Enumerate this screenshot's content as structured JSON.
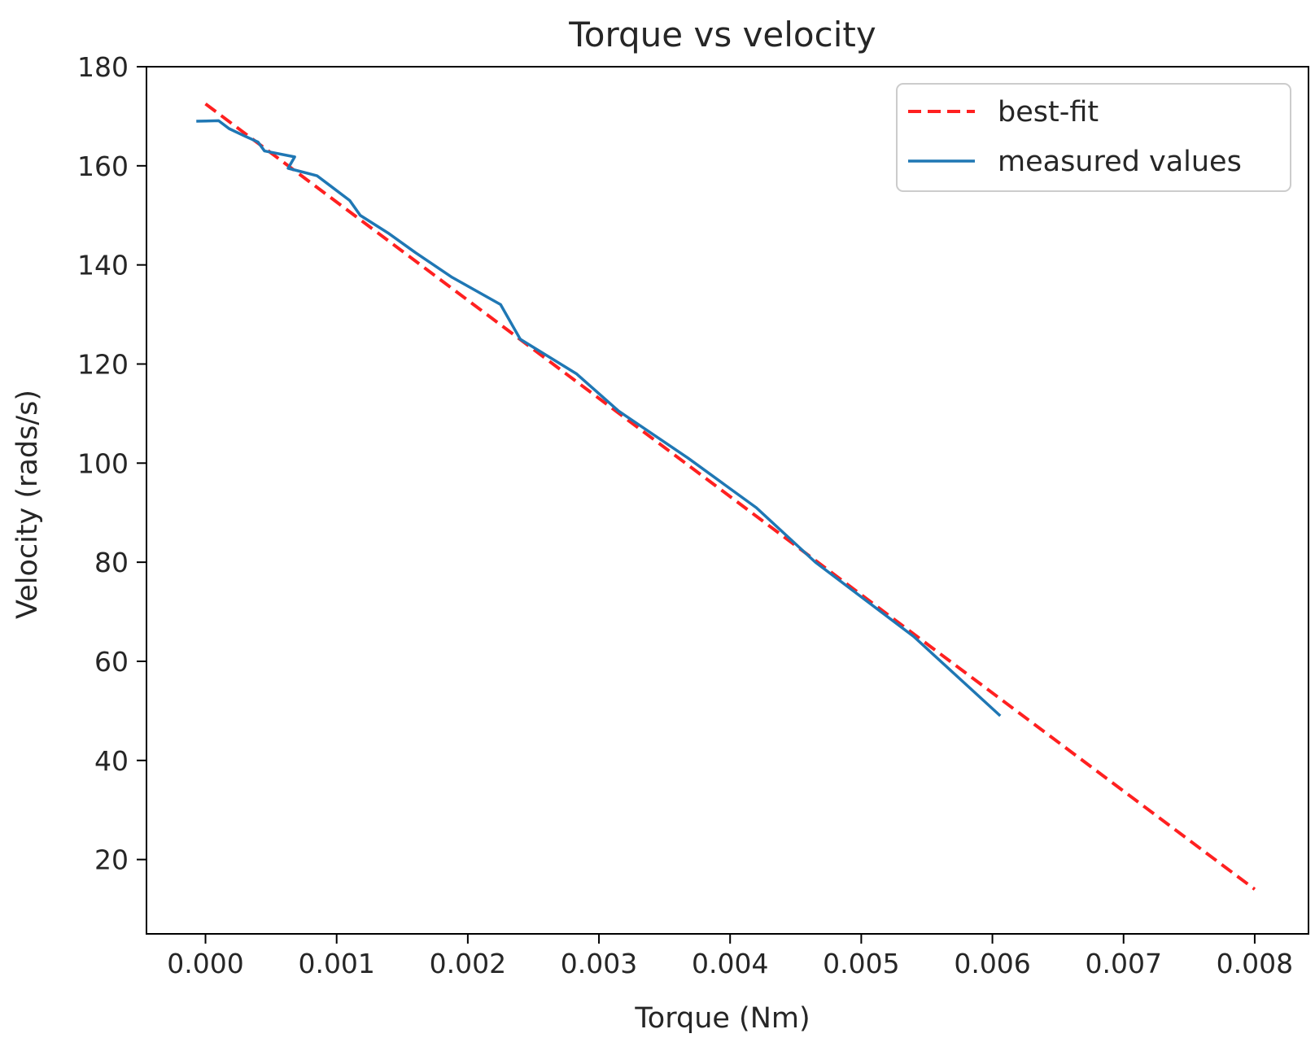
{
  "chart_data": {
    "type": "line",
    "title": "Torque vs velocity",
    "xlabel": "Torque (Nm)",
    "ylabel": "Velocity (rads/s)",
    "xlim": [
      -0.00045,
      0.00841
    ],
    "ylim": [
      5,
      180
    ],
    "x_ticks": [
      0.0,
      0.001,
      0.002,
      0.003,
      0.004,
      0.005,
      0.006,
      0.007,
      0.008
    ],
    "x_tick_labels": [
      "0.000",
      "0.001",
      "0.002",
      "0.003",
      "0.004",
      "0.005",
      "0.006",
      "0.007",
      "0.008"
    ],
    "y_ticks": [
      20,
      40,
      60,
      80,
      100,
      120,
      140,
      160,
      180
    ],
    "y_tick_labels": [
      "20",
      "40",
      "60",
      "80",
      "100",
      "120",
      "140",
      "160",
      "180"
    ],
    "grid": false,
    "legend": {
      "position": "top-right"
    },
    "series": [
      {
        "name": "best-fit",
        "style": "dashed",
        "color": "#ff2020",
        "points": [
          [
            0.0,
            172.5
          ],
          [
            0.008,
            14.0
          ]
        ]
      },
      {
        "name": "measured values",
        "style": "solid",
        "color": "#1f77b4",
        "points": [
          [
            -7e-05,
            169.0
          ],
          [
            0.0001,
            169.1
          ],
          [
            0.00018,
            167.5
          ],
          [
            0.0003,
            166.0
          ],
          [
            0.0004,
            164.8
          ],
          [
            0.00045,
            163.0
          ],
          [
            0.00068,
            161.8
          ],
          [
            0.00063,
            159.5
          ],
          [
            0.00085,
            158.0
          ],
          [
            0.00095,
            156.0
          ],
          [
            0.0011,
            153.0
          ],
          [
            0.00118,
            150.0
          ],
          [
            0.0014,
            146.3
          ],
          [
            0.0016,
            142.5
          ],
          [
            0.00188,
            137.5
          ],
          [
            0.00225,
            132.0
          ],
          [
            0.0024,
            125.0
          ],
          [
            0.00283,
            118.0
          ],
          [
            0.00315,
            110.5
          ],
          [
            0.00368,
            101.0
          ],
          [
            0.0042,
            91.0
          ],
          [
            0.00465,
            80.0
          ],
          [
            0.0054,
            65.0
          ],
          [
            0.00606,
            49.0
          ]
        ]
      }
    ]
  }
}
